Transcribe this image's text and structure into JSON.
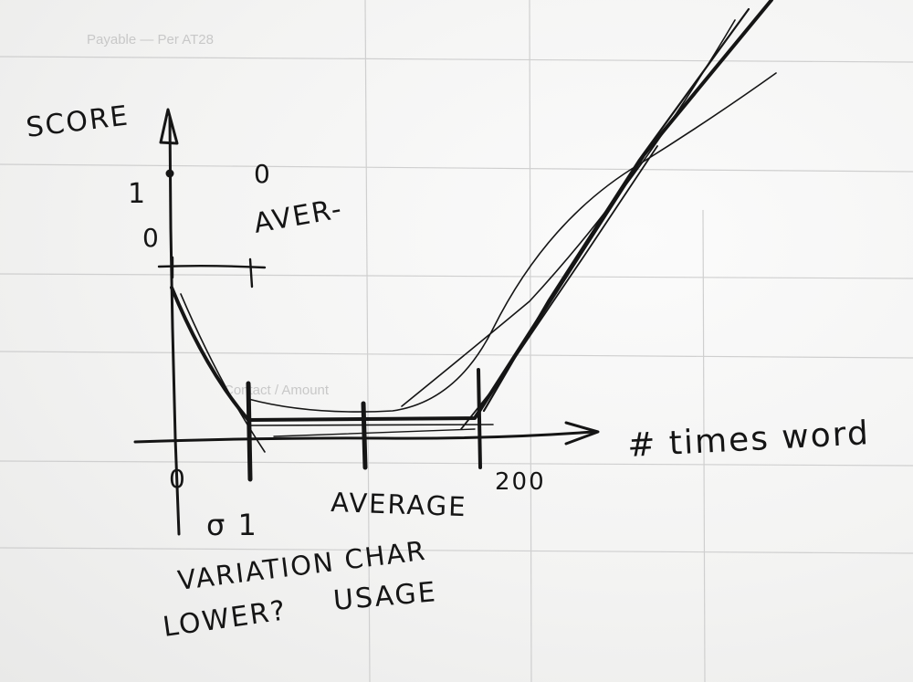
{
  "y_axis_label": "SCORE",
  "x_axis_label": "# times word",
  "y_tick_1": "1",
  "y_tick_0": "0",
  "origin_label": "0",
  "legend_marker_label": "0",
  "legend_line_label": "AVER-",
  "sigma_label": "σ 1",
  "average_label": "AVERAGE",
  "max_label": "200",
  "note_line1": "VARIATION CHAR",
  "note_line2_left": "LOWER?",
  "note_line2_right": "USAGE",
  "back_page_text_1": "Payable — Per AT28",
  "back_page_text_2": "Contact / Amount"
}
